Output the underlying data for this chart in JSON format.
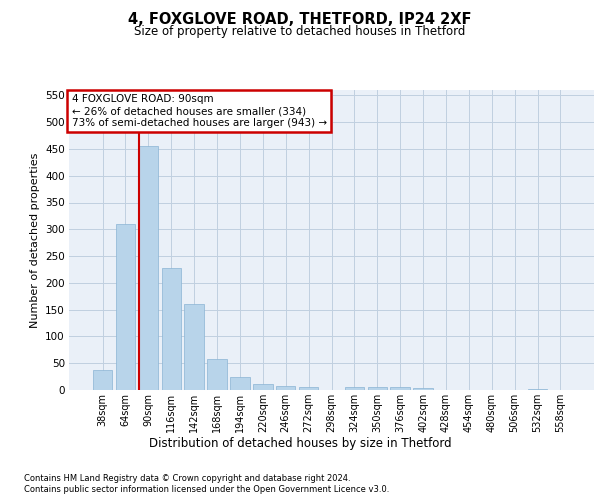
{
  "title1": "4, FOXGLOVE ROAD, THETFORD, IP24 2XF",
  "title2": "Size of property relative to detached houses in Thetford",
  "xlabel": "Distribution of detached houses by size in Thetford",
  "ylabel": "Number of detached properties",
  "footnote1": "Contains HM Land Registry data © Crown copyright and database right 2024.",
  "footnote2": "Contains public sector information licensed under the Open Government Licence v3.0.",
  "annotation_line1": "4 FOXGLOVE ROAD: 90sqm",
  "annotation_line2": "← 26% of detached houses are smaller (334)",
  "annotation_line3": "73% of semi-detached houses are larger (943) →",
  "bar_labels": [
    "38sqm",
    "64sqm",
    "90sqm",
    "116sqm",
    "142sqm",
    "168sqm",
    "194sqm",
    "220sqm",
    "246sqm",
    "272sqm",
    "298sqm",
    "324sqm",
    "350sqm",
    "376sqm",
    "402sqm",
    "428sqm",
    "454sqm",
    "480sqm",
    "506sqm",
    "532sqm",
    "558sqm"
  ],
  "bar_values": [
    38,
    310,
    456,
    228,
    160,
    57,
    25,
    11,
    8,
    6,
    0,
    5,
    5,
    5,
    4,
    0,
    0,
    0,
    0,
    2,
    0
  ],
  "bar_color": "#b8d4ea",
  "bar_edge_color": "#8ab4d4",
  "vline_color": "#cc0000",
  "vline_index": 2,
  "annotation_box_edgecolor": "#cc0000",
  "grid_color": "#c0cfe0",
  "plot_bg_color": "#eaf0f8",
  "ylim_max": 560,
  "yticks": [
    0,
    50,
    100,
    150,
    200,
    250,
    300,
    350,
    400,
    450,
    500,
    550
  ]
}
